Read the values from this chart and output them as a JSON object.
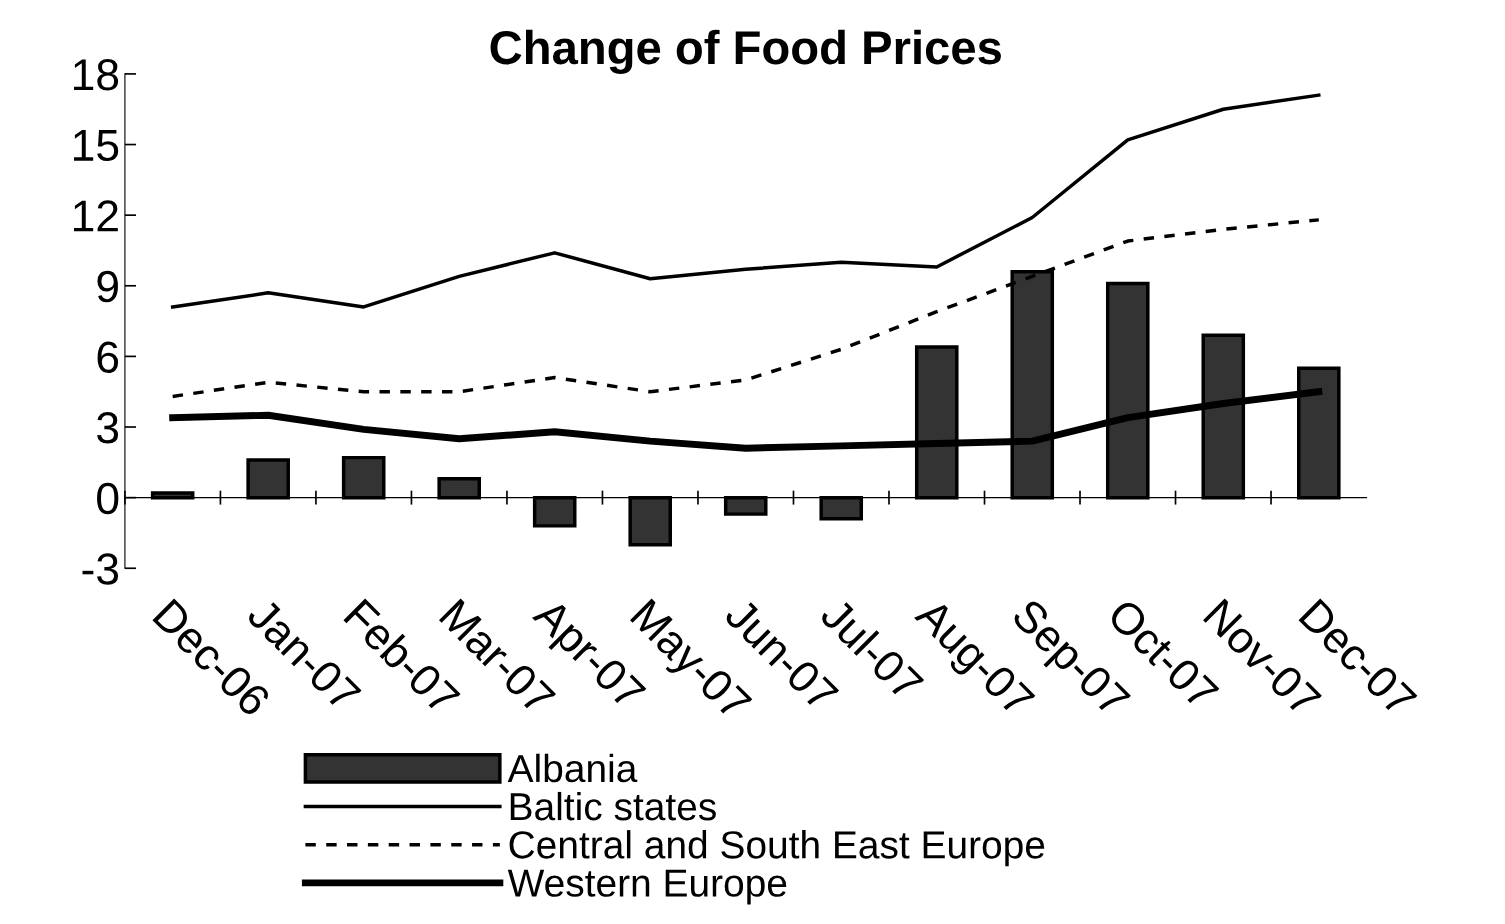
{
  "chart_data": {
    "type": "bar",
    "title": "Change of Food Prices",
    "categories": [
      "Dec-06",
      "Jan-07",
      "Feb-07",
      "Mar-07",
      "Apr-07",
      "May-07",
      "Jun-07",
      "Jul-07",
      "Aug-07",
      "Sep-07",
      "Oct-07",
      "Nov-07",
      "Dec-07"
    ],
    "series": [
      {
        "name": "Albania",
        "color": "#333333",
        "values": [
          0.2,
          1.6,
          1.7,
          0.8,
          -1.2,
          -2.0,
          -0.7,
          -0.9,
          6.4,
          9.6,
          9.1,
          6.9,
          5.5
        ]
      },
      {
        "name": "Baltic states",
        "type": "line",
        "line_style": "solid",
        "color": "#000000",
        "values": [
          8.1,
          8.7,
          8.1,
          9.4,
          10.4,
          9.3,
          9.7,
          10.0,
          9.8,
          11.9,
          15.2,
          16.5,
          17.1
        ]
      },
      {
        "name": "Central and South East Europe",
        "type": "line",
        "line_style": "dashed",
        "color": "#000000",
        "values": [
          4.3,
          4.9,
          4.5,
          4.5,
          5.1,
          4.5,
          5.0,
          6.3,
          7.9,
          9.4,
          10.9,
          11.4,
          11.8
        ]
      },
      {
        "name": "Western Europe",
        "type": "line",
        "line_style": "solid",
        "color": "#000000",
        "values": [
          3.4,
          3.5,
          2.9,
          2.5,
          2.8,
          2.4,
          2.1,
          2.2,
          2.3,
          2.4,
          3.4,
          4.0,
          4.5
        ]
      }
    ],
    "ylim": [
      -3,
      18
    ],
    "yticks": [
      -3,
      0,
      3,
      6,
      9,
      12,
      15,
      18
    ],
    "grid": false,
    "legend": "bottom"
  }
}
